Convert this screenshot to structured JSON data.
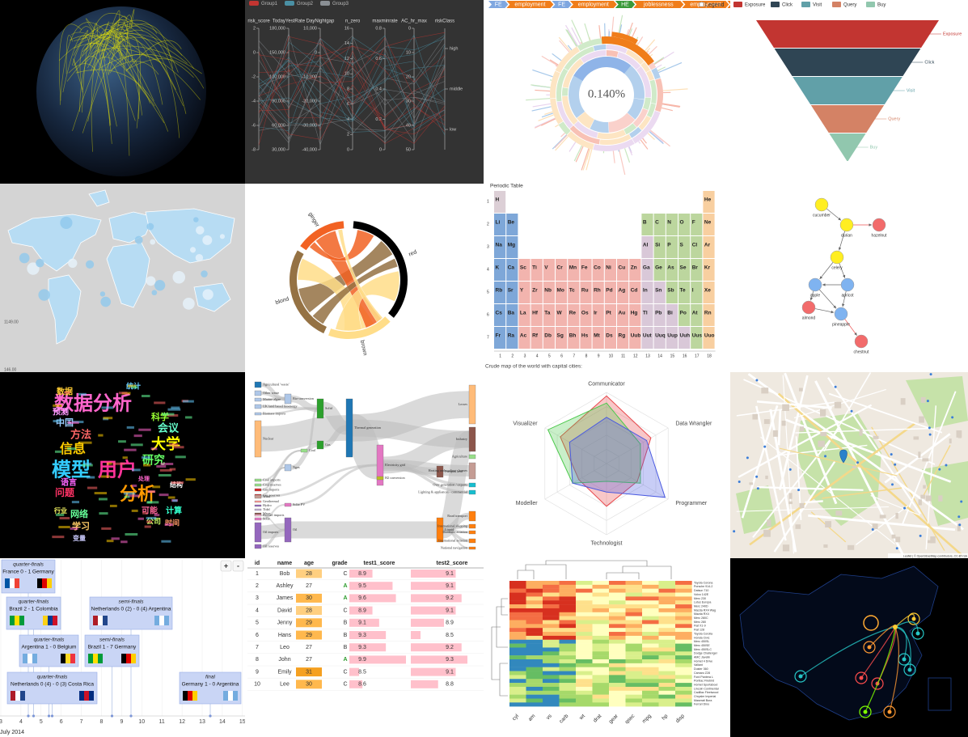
{
  "parallel": {
    "legend": [
      {
        "name": "Group1",
        "color": "#c23531"
      },
      {
        "name": "Group2",
        "color": "#4a90a4"
      },
      {
        "name": "Group3",
        "color": "#8a8f94"
      }
    ],
    "axes": [
      {
        "name": "risk_score",
        "ticks": [
          2,
          0,
          -2,
          -4,
          -6,
          -8
        ]
      },
      {
        "name": "TodayYestRate",
        "ticks": [
          "180,000",
          "150,000",
          "120,000",
          "90,000",
          "60,000",
          "30,000"
        ]
      },
      {
        "name": "DayNightgap",
        "ticks": [
          "10,000",
          0,
          "-10,000",
          "-20,000",
          "-30,000",
          "-40,000"
        ]
      },
      {
        "name": "n_zero",
        "ticks": [
          16,
          14,
          12,
          10,
          8,
          6,
          4,
          2,
          0
        ]
      },
      {
        "name": "maxminrate",
        "ticks": [
          0.8,
          0.6,
          0.4,
          0.2,
          0
        ]
      },
      {
        "name": "AC_hr_max",
        "ticks": [
          0,
          10,
          20,
          30,
          40,
          50
        ]
      },
      {
        "name": "riskClass",
        "ticks": [
          "high",
          "middle",
          "low"
        ]
      }
    ]
  },
  "sunburst": {
    "breadcrumb": [
      {
        "name": "FE",
        "color": "#7fa7e0"
      },
      {
        "name": "employment",
        "color": "#f07d1a"
      },
      {
        "name": "FE",
        "color": "#7fa7e0"
      },
      {
        "name": "employment",
        "color": "#f07d1a"
      },
      {
        "name": "HE",
        "color": "#3a9a3a"
      },
      {
        "name": "joblessness",
        "color": "#f07d1a"
      },
      {
        "name": "employment",
        "color": "#f07d1a"
      },
      {
        "name": "end",
        "color": "#f07d1a"
      }
    ],
    "percentage": "0.140%",
    "legend": "Legend",
    "center": "0.140%"
  },
  "funnel": {
    "stages": [
      {
        "name": "Exposure",
        "color": "#c23531"
      },
      {
        "name": "Click",
        "color": "#2f4554"
      },
      {
        "name": "Visit",
        "color": "#61a0a8"
      },
      {
        "name": "Query",
        "color": "#d48265"
      },
      {
        "name": "Buy",
        "color": "#91c7ae"
      }
    ]
  },
  "world_map": {
    "labels": [
      "1149.00",
      "146.00"
    ]
  },
  "chord": {
    "groups": [
      {
        "name": "red",
        "color": "#000000"
      },
      {
        "name": "brown",
        "color": "#ffdd89"
      },
      {
        "name": "blond",
        "color": "#957244"
      },
      {
        "name": "ginger",
        "color": "#f26223"
      }
    ]
  },
  "periodic": {
    "title": "Periodic Table",
    "columns": [
      1,
      2,
      3,
      4,
      5,
      6,
      7,
      8,
      9,
      10,
      11,
      12,
      13,
      14,
      15,
      16,
      17,
      18
    ],
    "rows": [
      1,
      2,
      3,
      4,
      5,
      6,
      7
    ],
    "elements": [
      [
        "H",
        null,
        null,
        null,
        null,
        null,
        null,
        null,
        null,
        null,
        null,
        null,
        null,
        null,
        null,
        null,
        null,
        "He"
      ],
      [
        "Li",
        "Be",
        null,
        null,
        null,
        null,
        null,
        null,
        null,
        null,
        null,
        null,
        "B",
        "C",
        "N",
        "O",
        "F",
        "Ne"
      ],
      [
        "Na",
        "Mg",
        null,
        null,
        null,
        null,
        null,
        null,
        null,
        null,
        null,
        null,
        "Al",
        "Si",
        "P",
        "S",
        "Cl",
        "Ar"
      ],
      [
        "K",
        "Ca",
        "Sc",
        "Ti",
        "V",
        "Cr",
        "Mn",
        "Fe",
        "Co",
        "Ni",
        "Cu",
        "Zn",
        "Ga",
        "Ge",
        "As",
        "Se",
        "Br",
        "Kr"
      ],
      [
        "Rb",
        "Sr",
        "Y",
        "Zr",
        "Nb",
        "Mo",
        "Tc",
        "Ru",
        "Rh",
        "Pd",
        "Ag",
        "Cd",
        "In",
        "Sn",
        "Sb",
        "Te",
        "I",
        "Xe"
      ],
      [
        "Cs",
        "Ba",
        "La",
        "Hf",
        "Ta",
        "W",
        "Re",
        "Os",
        "Ir",
        "Pt",
        "Au",
        "Hg",
        "Tl",
        "Pb",
        "Bi",
        "Po",
        "At",
        "Rn"
      ],
      [
        "Fr",
        "Ra",
        "Ac",
        "Rf",
        "Db",
        "Sg",
        "Bh",
        "Hs",
        "Mt",
        "Ds",
        "Rg",
        "Uub",
        "Uut",
        "Uuq",
        "Uup",
        "Uuh",
        "Uus",
        "Uuo"
      ]
    ]
  },
  "graph": {
    "nodes": [
      {
        "label": "cucumber",
        "color": "#ffee22"
      },
      {
        "label": "durian",
        "color": "#ffee22"
      },
      {
        "label": "hazelnut",
        "color": "#f26b6b"
      },
      {
        "label": "celery",
        "color": "#ffee22"
      },
      {
        "label": "apple",
        "color": "#7fb3f0"
      },
      {
        "label": "apricot",
        "color": "#7fb3f0"
      },
      {
        "label": "almond",
        "color": "#f26b6b"
      },
      {
        "label": "pineapple",
        "color": "#7fb3f0"
      },
      {
        "label": "chestnut",
        "color": "#f26b6b"
      }
    ]
  },
  "wordcloud": {
    "words": [
      "数据分析",
      "模型",
      "用户",
      "分析",
      "研究",
      "信息",
      "大学",
      "方法",
      "会议",
      "中国",
      "预测",
      "网络",
      "学习",
      "可能",
      "计算",
      "公司",
      "时间",
      "问题",
      "语言",
      "科学",
      "结构",
      "变量",
      "行业",
      "数据",
      "统计",
      "处理"
    ]
  },
  "sankey": {
    "nodes": [
      "Agricultural 'waste'",
      "Other waste",
      "Marine algae",
      "UK land based bioenergy",
      "Biomass imports",
      "Nuclear",
      "Coal imports",
      "Coal reserves",
      "Gas imports",
      "Gas reserves",
      "Geothermal",
      "Hydro",
      "Tidal",
      "Wave",
      "Wind",
      "Solar",
      "Biofuel imports",
      "Oil imports",
      "Oil reserves",
      "Bio-conversion",
      "Coal",
      "Ngas",
      "Solar PV",
      "Oil",
      "Solid",
      "Gas",
      "Thermal generation",
      "Electricity grid",
      "H2 conversion",
      "Pumped heat",
      "Liquid",
      "Losses",
      "Industry",
      "Agriculture",
      "Heating and cooling - homes",
      "Over generation / exports",
      "Lighting & appliances - commercial",
      "Road transport",
      "International shipping",
      "Domestic aviation",
      "International aviation",
      "National navigation"
    ]
  },
  "radar": {
    "caption": "Crude map of the world with capital cities:",
    "axes": [
      "Communicator",
      "Data Wrangler",
      "Programmer",
      "Technologist",
      "Modeller",
      "Visualizer"
    ],
    "series": [
      {
        "color": "#e8464a",
        "values": [
          0.95,
          0.72,
          0.5,
          0.6,
          0.45,
          0.75
        ]
      },
      {
        "color": "#4cc94c",
        "values": [
          0.85,
          0.55,
          0.55,
          0.25,
          0.55,
          0.95
        ]
      },
      {
        "color": "#4a5ae0",
        "values": [
          0.65,
          0.65,
          0.95,
          0.4,
          0.55,
          0.6
        ]
      }
    ]
  },
  "street_map": {
    "attribution": "Leaflet | © OpenStreetMap contributors, CC-BY-SA"
  },
  "bracket": {
    "buttons": [
      "+",
      "-"
    ],
    "matches": [
      {
        "round": "quarter-finals",
        "score": "France 0 - 1 Germany"
      },
      {
        "round": "quarter-finals",
        "score": "Brazil 2 - 1 Colombia"
      },
      {
        "round": "semi-finals",
        "score": "Netherlands 0 (2) - 0 (4) Argentina"
      },
      {
        "round": "quarter-finals",
        "score": "Argentina 1 - 0 Belgium"
      },
      {
        "round": "semi-finals",
        "score": "Brazil 1 - 7 Germany"
      },
      {
        "round": "quarter-finals",
        "score": "Netherlands 0 (4) - 0 (3) Costa Rica"
      },
      {
        "round": "final",
        "score": "Germany 1 - 0 Argentina"
      }
    ],
    "ticks": [
      3,
      4,
      5,
      6,
      7,
      8,
      9,
      10,
      11,
      12,
      13,
      14,
      15
    ],
    "axis_label": "July 2014"
  },
  "table": {
    "columns": [
      "id",
      "name",
      "age",
      "grade",
      "test1_score",
      "test2_score"
    ],
    "rows": [
      [
        1,
        "Bob",
        28,
        "C",
        8.9,
        9.1
      ],
      [
        2,
        "Ashley",
        27,
        "A",
        9.5,
        9.1
      ],
      [
        3,
        "James",
        30,
        "A",
        9.6,
        9.2
      ],
      [
        4,
        "David",
        28,
        "C",
        8.9,
        9.1
      ],
      [
        5,
        "Jenny",
        29,
        "B",
        9.1,
        8.9
      ],
      [
        6,
        "Hans",
        29,
        "B",
        9.3,
        8.5
      ],
      [
        7,
        "Leo",
        27,
        "B",
        9.3,
        9.2
      ],
      [
        8,
        "John",
        27,
        "A",
        9.9,
        9.3
      ],
      [
        9,
        "Emily",
        31,
        "C",
        8.5,
        9.1
      ],
      [
        10,
        "Lee",
        30,
        "C",
        8.6,
        8.8
      ]
    ]
  },
  "heatmap": {
    "columns": [
      "cyl",
      "am",
      "vs",
      "carb",
      "wt",
      "drat",
      "gear",
      "qsec",
      "mpg",
      "hp",
      "disp"
    ],
    "rows": [
      "Toyota Corona",
      "Porsche 914-2",
      "Datsun 710",
      "Volvo 142E",
      "Merc 230",
      "Lotus Europa",
      "Merc 240D",
      "Mazda RX4 Wag",
      "Mazda RX4",
      "Merc 280C",
      "Merc 280",
      "Fiat X1-9",
      "Fiat 128",
      "Toyota Corolla",
      "Honda Civic",
      "Merc 450SL",
      "Merc 450SE",
      "Merc 450SLC",
      "Dodge Challenger",
      "AMC Javelin",
      "Hornet 4 Drive",
      "Valiant",
      "Duster 360",
      "Camaro Z28",
      "Ford Pantera L",
      "Pontiac Firebird",
      "Hornet Sportabout",
      "Lincoln Continental",
      "Cadillac Fleetwood",
      "Chrysler Imperial",
      "Maserati Bora",
      "Ferrari Dino"
    ]
  }
}
